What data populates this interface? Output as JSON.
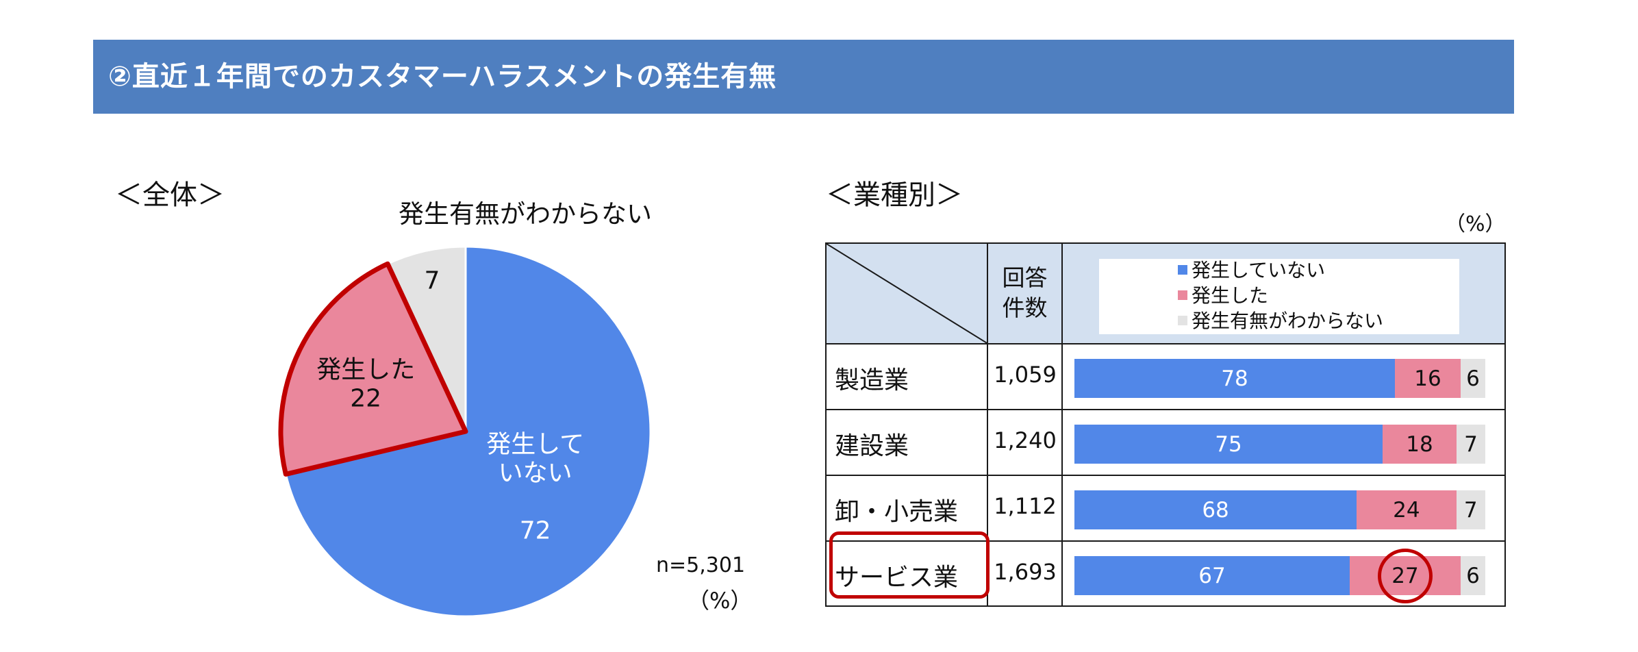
{
  "header": {
    "title": "②直近１年間でのカスタマーハラスメントの発生有無"
  },
  "overall": {
    "label": "＜全体＞",
    "n_label": "n=5,301",
    "unit": "（%）"
  },
  "industry": {
    "label": "＜業種別＞",
    "unit": "（%）",
    "count_header": "回答件数",
    "count_header_lines": [
      "回答",
      "件数"
    ]
  },
  "colors": {
    "not_occurred": "#5187e8",
    "occurred": "#ea879c",
    "unknown": "#e3e3e3",
    "highlight": "#c00000",
    "header": "#4f7fc0"
  },
  "chart_data": [
    {
      "type": "pie",
      "title": "",
      "slices": [
        {
          "label": "発生していない",
          "label_lines": [
            "発生して",
            "いない"
          ],
          "value": 72,
          "color": "#5187e8"
        },
        {
          "label": "発生した",
          "label_lines": [
            "発生した"
          ],
          "value": 22,
          "color": "#ea879c",
          "highlighted": true
        },
        {
          "label": "発生有無がわからない",
          "label_lines": [
            "発生有無がわからない"
          ],
          "value": 7,
          "color": "#e3e3e3"
        }
      ],
      "start": "12 o'clock",
      "direction": "clockwise"
    },
    {
      "type": "bar",
      "orientation": "horizontal",
      "stacked": true,
      "normalized": "100%",
      "categories": [
        "製造業",
        "建設業",
        "卸・小売業",
        "サービス業"
      ],
      "counts": [
        "1,059",
        "1,240",
        "1,112",
        "1,693"
      ],
      "series": [
        {
          "name": "発生していない",
          "values": [
            78,
            75,
            68,
            67
          ],
          "color": "#5187e8"
        },
        {
          "name": "発生した",
          "values": [
            16,
            18,
            24,
            27
          ],
          "color": "#ea879c"
        },
        {
          "name": "発生有無がわからない",
          "values": [
            6,
            7,
            7,
            6
          ],
          "color": "#e3e3e3"
        }
      ],
      "legend": "top",
      "highlight": {
        "category": "サービス業",
        "series": "発生した"
      }
    }
  ]
}
